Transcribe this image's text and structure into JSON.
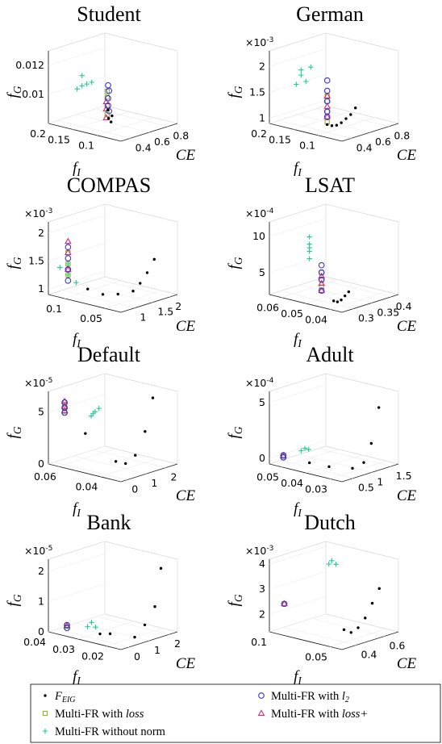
{
  "axis_labels": {
    "x": "CE",
    "y": {
      "main": "f",
      "sub": "I"
    },
    "z": {
      "main": "f",
      "sub": "G"
    }
  },
  "legend": [
    {
      "name": "F",
      "sub": "EIG",
      "marker": "dot",
      "color": "#000000"
    },
    {
      "name": "Multi-FR with ",
      "math": "l",
      "sub": "2",
      "marker": "circle",
      "color": "#3b30d0"
    },
    {
      "name": "Multi-FR with ",
      "math": "loss",
      "marker": "square",
      "color": "#8db32a"
    },
    {
      "name": "Multi-FR with ",
      "math": "loss+",
      "marker": "triangle",
      "color": "#d42a6f"
    },
    {
      "name": "Multi-FR without norm",
      "marker": "plus",
      "color": "#1fc99c"
    }
  ],
  "chart_data": [
    {
      "type": "scatter3d",
      "title": "Student",
      "xlim": [
        0.3,
        0.9
      ],
      "ylim": [
        0.05,
        0.2
      ],
      "zlim": [
        0.008,
        0.013
      ],
      "xticks": [
        0.4,
        0.6,
        0.8
      ],
      "yticks": [
        0.1,
        0.15,
        0.2
      ],
      "zticks": [
        0.01,
        0.012
      ],
      "series": [
        {
          "x": [
            0.4,
            0.41,
            0.42,
            0.4
          ],
          "y": [
            0.09,
            0.09,
            0.1,
            0.095
          ],
          "z": [
            0.0088,
            0.0092,
            0.0095,
            0.009
          ]
        },
        {
          "x": [
            0.42,
            0.42,
            0.43,
            0.42,
            0.43
          ],
          "y": [
            0.1,
            0.1,
            0.1,
            0.1,
            0.1
          ],
          "z": [
            0.0098,
            0.0103,
            0.0108,
            0.0112,
            0.0094
          ]
        },
        {
          "x": [
            0.41,
            0.41,
            0.41,
            0.41
          ],
          "y": [
            0.1,
            0.1,
            0.1,
            0.1
          ],
          "z": [
            0.0092,
            0.0098,
            0.0104,
            0.0108
          ]
        },
        {
          "x": [
            0.4,
            0.4,
            0.4
          ],
          "y": [
            0.1,
            0.1,
            0.1
          ],
          "z": [
            0.009,
            0.0096,
            0.0101
          ]
        },
        {
          "x": [
            0.4,
            0.4,
            0.4,
            0.4,
            0.4
          ],
          "y": [
            0.15,
            0.14,
            0.16,
            0.13,
            0.15
          ],
          "z": [
            0.0115,
            0.011,
            0.0105,
            0.0112,
            0.0108
          ]
        }
      ]
    },
    {
      "type": "scatter3d",
      "title": "German",
      "xlim": [
        0.3,
        0.9
      ],
      "ylim": [
        0.05,
        0.2
      ],
      "zlim": [
        0.9,
        2.3
      ],
      "xticks": [
        0.4,
        0.6,
        0.8
      ],
      "yticks": [
        0.1,
        0.15,
        0.2
      ],
      "zticks": [
        1,
        1.5,
        2
      ],
      "zexp": {
        "base": "×10",
        "exp": "-3"
      },
      "series": [
        {
          "x": [
            0.4,
            0.45,
            0.5,
            0.55,
            0.6,
            0.65,
            0.7
          ],
          "y": [
            0.1,
            0.1,
            0.1,
            0.1,
            0.1,
            0.1,
            0.1
          ],
          "z": [
            1.05,
            1.0,
            0.98,
            1.0,
            1.05,
            1.1,
            1.2
          ]
        },
        {
          "x": [
            0.4,
            0.4,
            0.4,
            0.4,
            0.4
          ],
          "y": [
            0.1,
            0.1,
            0.1,
            0.1,
            0.1
          ],
          "z": [
            1.3,
            1.5,
            1.7,
            1.9,
            1.2
          ]
        },
        {
          "x": [
            0.4,
            0.4,
            0.4,
            0.4
          ],
          "y": [
            0.1,
            0.1,
            0.1,
            0.1
          ],
          "z": [
            1.1,
            1.3,
            1.5,
            1.6
          ]
        },
        {
          "x": [
            0.4,
            0.4,
            0.4
          ],
          "y": [
            0.1,
            0.1,
            0.1
          ],
          "z": [
            1.2,
            1.4,
            1.6
          ]
        },
        {
          "x": [
            0.38,
            0.38,
            0.38,
            0.38,
            0.38
          ],
          "y": [
            0.15,
            0.14,
            0.16,
            0.15,
            0.13
          ],
          "z": [
            2.0,
            1.8,
            1.7,
            1.9,
            2.1
          ]
        }
      ]
    },
    {
      "type": "scatter3d",
      "title": "COMPAS",
      "xlim": [
        0.6,
        2.2
      ],
      "ylim": [
        0.03,
        0.12
      ],
      "zlim": [
        0.9,
        2.2
      ],
      "xticks": [
        1,
        1.5,
        2
      ],
      "yticks": [
        0.05,
        0.1
      ],
      "zticks": [
        1,
        1.5,
        2
      ],
      "zexp": {
        "base": "×10",
        "exp": "-3"
      },
      "series": [
        {
          "x": [
            0.8,
            1.0,
            1.2,
            1.4,
            1.6,
            1.8,
            2.0
          ],
          "y": [
            0.08,
            0.07,
            0.06,
            0.05,
            0.05,
            0.05,
            0.05
          ],
          "z": [
            1.1,
            1.0,
            1.0,
            1.05,
            1.15,
            1.3,
            1.5
          ]
        },
        {
          "x": [
            0.7,
            0.7,
            0.7,
            0.7
          ],
          "y": [
            0.1,
            0.1,
            0.1,
            0.1
          ],
          "z": [
            1.2,
            1.4,
            1.6,
            1.8
          ]
        },
        {
          "x": [
            0.7,
            0.7,
            0.7
          ],
          "y": [
            0.1,
            0.1,
            0.1
          ],
          "z": [
            1.3,
            1.5,
            1.7
          ]
        },
        {
          "x": [
            0.7,
            0.7,
            0.7
          ],
          "y": [
            0.1,
            0.1,
            0.1
          ],
          "z": [
            1.4,
            1.7,
            1.9
          ]
        },
        {
          "x": [
            0.7,
            0.7,
            0.7,
            0.7
          ],
          "y": [
            0.09,
            0.1,
            0.11,
            0.1
          ],
          "z": [
            1.2,
            1.3,
            1.4,
            1.5
          ]
        }
      ]
    },
    {
      "type": "scatter3d",
      "title": "LSAT",
      "xlim": [
        0.27,
        0.42
      ],
      "ylim": [
        0.035,
        0.065
      ],
      "zlim": [
        2,
        12
      ],
      "xticks": [
        0.3,
        0.35,
        0.4
      ],
      "yticks": [
        0.04,
        0.05,
        0.06
      ],
      "zticks": [
        5,
        10
      ],
      "zexp": {
        "base": "×10",
        "exp": "-4"
      },
      "series": [
        {
          "x": [
            0.28,
            0.29,
            0.3,
            0.31,
            0.32
          ],
          "y": [
            0.04,
            0.04,
            0.04,
            0.04,
            0.04
          ],
          "z": [
            3,
            2.7,
            2.8,
            3.2,
            3.6
          ]
        },
        {
          "x": [
            0.28,
            0.28,
            0.28,
            0.28
          ],
          "y": [
            0.045,
            0.045,
            0.045,
            0.045
          ],
          "z": [
            4,
            5.5,
            6.5,
            7.5
          ]
        },
        {
          "x": [
            0.28,
            0.28,
            0.28
          ],
          "y": [
            0.045,
            0.045,
            0.045
          ],
          "z": [
            4.5,
            5.5,
            6.5
          ]
        },
        {
          "x": [
            0.28,
            0.28,
            0.28
          ],
          "y": [
            0.045,
            0.045,
            0.045
          ],
          "z": [
            4,
            5,
            6
          ]
        },
        {
          "x": [
            0.28,
            0.28,
            0.28,
            0.28,
            0.28
          ],
          "y": [
            0.05,
            0.05,
            0.05,
            0.05,
            0.05
          ],
          "z": [
            8,
            9,
            10,
            11,
            9.5
          ]
        }
      ]
    },
    {
      "type": "scatter3d",
      "title": "Default",
      "xlim": [
        -0.3,
        2.6
      ],
      "ylim": [
        0.03,
        0.065
      ],
      "zlim": [
        0,
        7
      ],
      "xticks": [
        0,
        1,
        2
      ],
      "yticks": [
        0.04,
        0.06
      ],
      "zticks": [
        0,
        5
      ],
      "zexp": {
        "base": "×10",
        "exp": "-5"
      },
      "series": [
        {
          "x": [
            0,
            0.5,
            1,
            1.5,
            2,
            2.4
          ],
          "y": [
            0.05,
            0.04,
            0.04,
            0.04,
            0.04,
            0.04
          ],
          "z": [
            3.5,
            1,
            0.5,
            1,
            3,
            6
          ]
        },
        {
          "x": [
            0,
            0,
            0
          ],
          "y": [
            0.06,
            0.06,
            0.06
          ],
          "z": [
            5,
            5.5,
            6
          ]
        },
        {
          "x": [
            0,
            0,
            0
          ],
          "y": [
            0.06,
            0.06,
            0.06
          ],
          "z": [
            5.1,
            5.4,
            5.8
          ]
        },
        {
          "x": [
            0,
            0,
            0
          ],
          "y": [
            0.06,
            0.06,
            0.06
          ],
          "z": [
            5.2,
            5.6,
            6.1
          ]
        },
        {
          "x": [
            0.3,
            0.5,
            0.7,
            0.4
          ],
          "y": [
            0.05,
            0.05,
            0.05,
            0.05
          ],
          "z": [
            5,
            5.3,
            5.5,
            5.2
          ]
        }
      ]
    },
    {
      "type": "scatter3d",
      "title": "Adult",
      "xlim": [
        0.2,
        1.7
      ],
      "ylim": [
        0.025,
        0.055
      ],
      "zlim": [
        -0.5,
        6
      ],
      "xticks": [
        0.5,
        1,
        1.5
      ],
      "yticks": [
        0.03,
        0.04,
        0.05
      ],
      "zticks": [
        0,
        5
      ],
      "zexp": {
        "base": "×10",
        "exp": "-4"
      },
      "series": [
        {
          "x": [
            0.3,
            0.5,
            0.8,
            1.1,
            1.3,
            1.5
          ],
          "y": [
            0.04,
            0.035,
            0.03,
            0.03,
            0.03,
            0.03
          ],
          "z": [
            0.3,
            0,
            -0.2,
            0,
            1.5,
            4.5
          ]
        },
        {
          "x": [
            0.25,
            0.25
          ],
          "y": [
            0.05,
            0.05
          ],
          "z": [
            0.3,
            0.5
          ]
        },
        {
          "x": [
            0.25
          ],
          "y": [
            0.05
          ],
          "z": [
            0.4
          ]
        },
        {
          "x": [
            0.25
          ],
          "y": [
            0.05
          ],
          "z": [
            0.45
          ]
        },
        {
          "x": [
            0.4,
            0.5,
            0.6
          ],
          "y": [
            0.045,
            0.045,
            0.045
          ],
          "z": [
            1,
            1.1,
            0.9
          ]
        }
      ]
    },
    {
      "type": "scatter3d",
      "title": "Bank",
      "xlim": [
        -0.4,
        2.4
      ],
      "ylim": [
        0.015,
        0.04
      ],
      "zlim": [
        0,
        2.4
      ],
      "xticks": [
        0,
        1,
        2
      ],
      "yticks": [
        0.02,
        0.03,
        0.04
      ],
      "zticks": [
        0,
        1,
        2
      ],
      "zexp": {
        "base": "×10",
        "exp": "-5"
      },
      "series": [
        {
          "x": [
            0,
            0.5,
            1,
            1.5,
            2,
            2.3
          ],
          "y": [
            0.025,
            0.025,
            0.02,
            0.02,
            0.02,
            0.02
          ],
          "z": [
            0.2,
            0.1,
            0,
            0.3,
            0.8,
            2
          ]
        },
        {
          "x": [
            -0.2,
            -0.2
          ],
          "y": [
            0.035,
            0.035
          ],
          "z": [
            0.2,
            0.3
          ]
        },
        {
          "x": [
            -0.2
          ],
          "y": [
            0.035
          ],
          "z": [
            0.25
          ]
        },
        {
          "x": [
            -0.2
          ],
          "y": [
            0.035
          ],
          "z": [
            0.28
          ]
        },
        {
          "x": [
            0.1,
            0.3,
            0.5
          ],
          "y": [
            0.03,
            0.03,
            0.03
          ],
          "z": [
            0.3,
            0.4,
            0.2
          ]
        }
      ]
    },
    {
      "type": "scatter3d",
      "title": "Dutch",
      "xlim": [
        0.3,
        0.7
      ],
      "ylim": [
        0.04,
        0.1
      ],
      "zlim": [
        1.3,
        4.2
      ],
      "xticks": [
        0.4,
        0.6
      ],
      "yticks": [
        0.05,
        0.1
      ],
      "zticks": [
        2,
        3,
        4
      ],
      "zexp": {
        "base": "×10",
        "exp": "-3"
      },
      "series": [
        {
          "x": [
            0.4,
            0.45,
            0.5,
            0.55,
            0.6,
            0.65
          ],
          "y": [
            0.05,
            0.05,
            0.05,
            0.05,
            0.05,
            0.05
          ],
          "z": [
            1.8,
            1.6,
            1.7,
            2.0,
            2.5,
            3.0
          ]
        },
        {
          "x": [
            0.32
          ],
          "y": [
            0.09
          ],
          "z": [
            2.5
          ]
        },
        {
          "x": [
            0.32
          ],
          "y": [
            0.09
          ],
          "z": [
            2.5
          ]
        },
        {
          "x": [
            0.32
          ],
          "y": [
            0.09
          ],
          "z": [
            2.5
          ]
        },
        {
          "x": [
            0.55,
            0.57,
            0.6
          ],
          "y": [
            0.08,
            0.08,
            0.08
          ],
          "z": [
            3.8,
            3.9,
            3.7
          ]
        }
      ]
    }
  ]
}
